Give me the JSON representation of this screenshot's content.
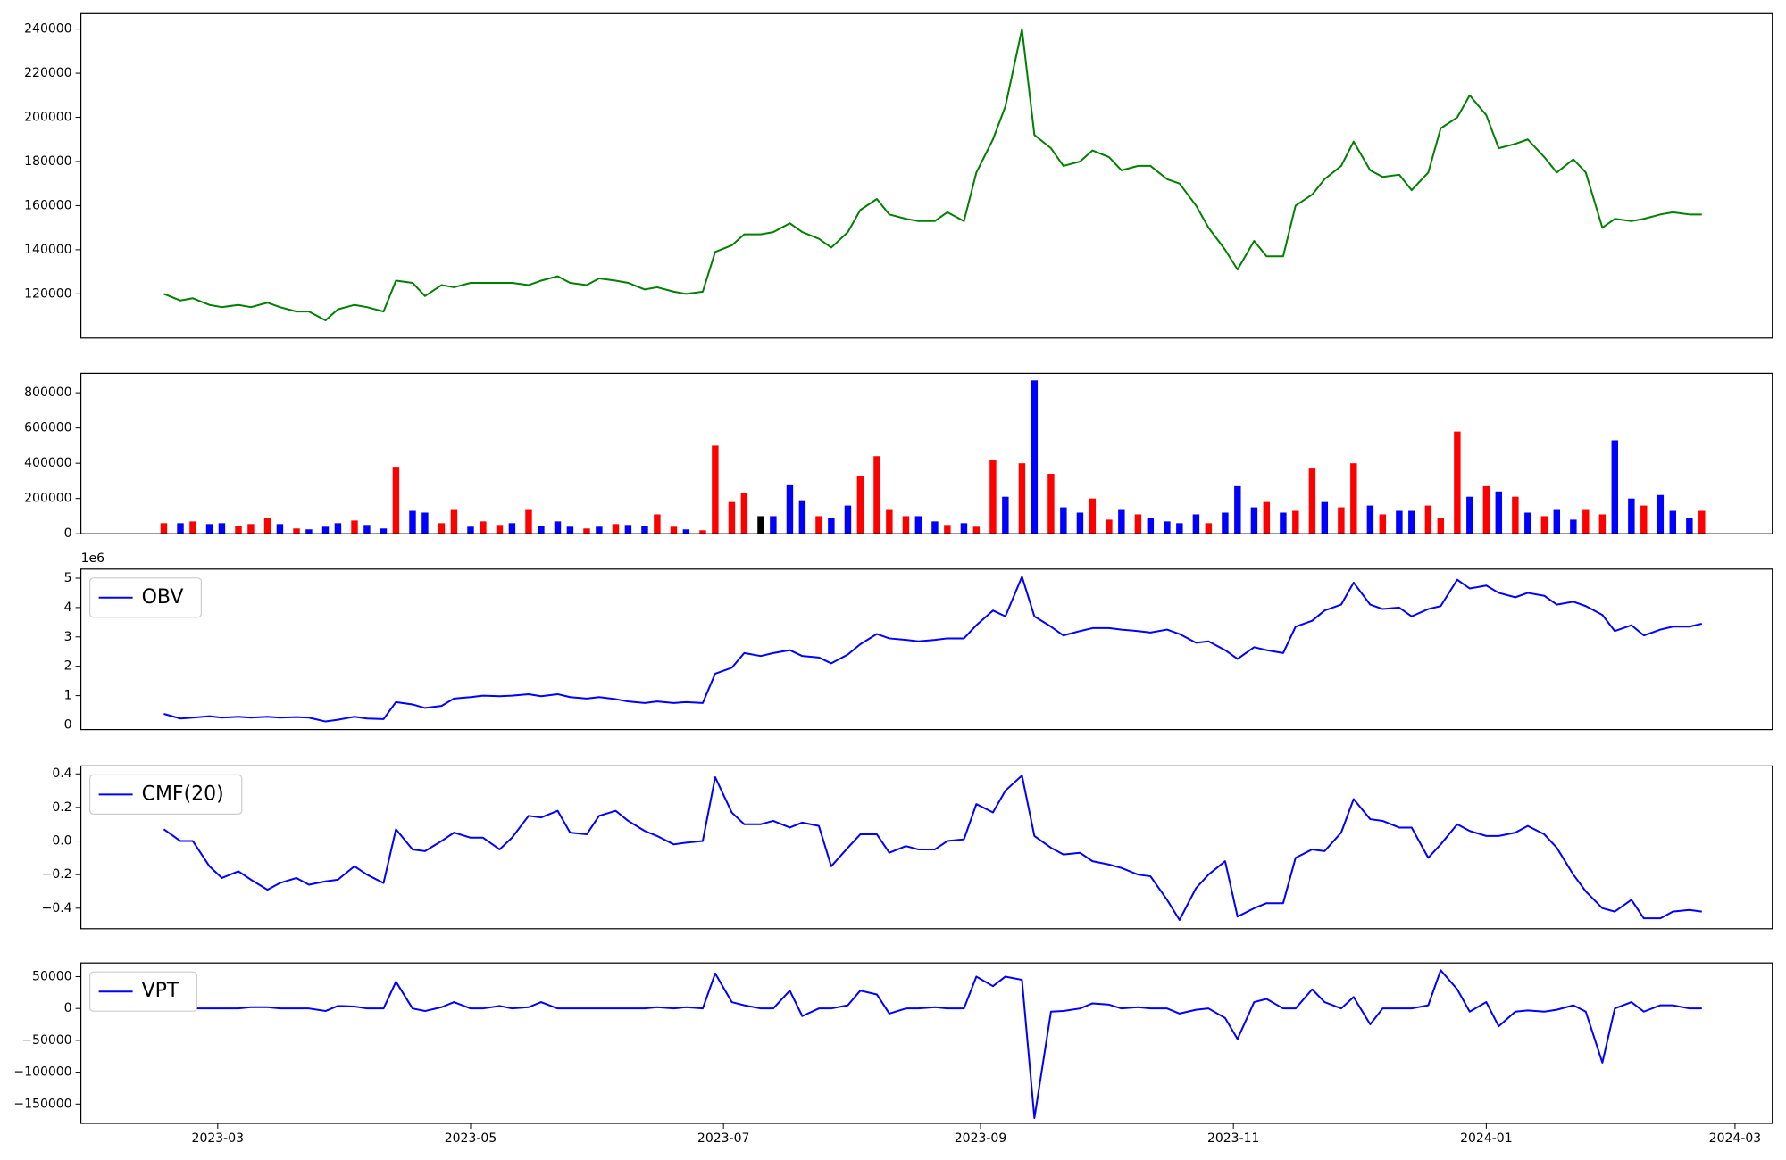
{
  "chart_data": {
    "type": "panels",
    "x": [
      "2023-02-16",
      "2023-02-20",
      "2023-02-23",
      "2023-02-27",
      "2023-03-02",
      "2023-03-06",
      "2023-03-09",
      "2023-03-13",
      "2023-03-16",
      "2023-03-20",
      "2023-03-23",
      "2023-03-27",
      "2023-03-30",
      "2023-04-03",
      "2023-04-06",
      "2023-04-10",
      "2023-04-13",
      "2023-04-17",
      "2023-04-20",
      "2023-04-24",
      "2023-04-27",
      "2023-05-01",
      "2023-05-04",
      "2023-05-08",
      "2023-05-11",
      "2023-05-15",
      "2023-05-18",
      "2023-05-22",
      "2023-05-25",
      "2023-05-29",
      "2023-06-01",
      "2023-06-05",
      "2023-06-08",
      "2023-06-12",
      "2023-06-15",
      "2023-06-19",
      "2023-06-22",
      "2023-06-26",
      "2023-06-29",
      "2023-07-03",
      "2023-07-06",
      "2023-07-10",
      "2023-07-13",
      "2023-07-17",
      "2023-07-20",
      "2023-07-24",
      "2023-07-27",
      "2023-07-31",
      "2023-08-03",
      "2023-08-07",
      "2023-08-10",
      "2023-08-14",
      "2023-08-17",
      "2023-08-21",
      "2023-08-24",
      "2023-08-28",
      "2023-08-31",
      "2023-09-04",
      "2023-09-07",
      "2023-09-11",
      "2023-09-14",
      "2023-09-18",
      "2023-09-21",
      "2023-09-25",
      "2023-09-28",
      "2023-10-02",
      "2023-10-05",
      "2023-10-09",
      "2023-10-12",
      "2023-10-16",
      "2023-10-19",
      "2023-10-23",
      "2023-10-26",
      "2023-10-30",
      "2023-11-02",
      "2023-11-06",
      "2023-11-09",
      "2023-11-13",
      "2023-11-16",
      "2023-11-20",
      "2023-11-23",
      "2023-11-27",
      "2023-11-30",
      "2023-12-04",
      "2023-12-07",
      "2023-12-11",
      "2023-12-14",
      "2023-12-18",
      "2023-12-21",
      "2023-12-25",
      "2023-12-28",
      "2024-01-01",
      "2024-01-04",
      "2024-01-08",
      "2024-01-11",
      "2024-01-15",
      "2024-01-18",
      "2024-01-22",
      "2024-01-25",
      "2024-01-29",
      "2024-02-01",
      "2024-02-05",
      "2024-02-08",
      "2024-02-12",
      "2024-02-15",
      "2024-02-19",
      "2024-02-22"
    ],
    "xlim": [
      "2023-01-27",
      "2024-03-10"
    ],
    "xticks": [
      {
        "value": "2023-03-01",
        "label": "2023-03"
      },
      {
        "value": "2023-05-01",
        "label": "2023-05"
      },
      {
        "value": "2023-07-01",
        "label": "2023-07"
      },
      {
        "value": "2023-09-01",
        "label": "2023-09"
      },
      {
        "value": "2023-11-01",
        "label": "2023-11"
      },
      {
        "value": "2024-01-01",
        "label": "2024-01"
      },
      {
        "value": "2024-03-01",
        "label": "2024-03"
      }
    ],
    "panels": [
      {
        "type": "line",
        "ylim": [
          100000,
          247000
        ],
        "yticks": [
          120000,
          140000,
          160000,
          180000,
          200000,
          220000,
          240000
        ],
        "series": [
          {
            "color": "#008000",
            "values": [
              120000,
              117000,
              118000,
              115000,
              114000,
              115000,
              114000,
              116000,
              114000,
              112000,
              112000,
              108000,
              113000,
              115000,
              114000,
              112000,
              126000,
              125000,
              119000,
              124000,
              123000,
              125000,
              125000,
              125000,
              125000,
              124000,
              126000,
              128000,
              125000,
              124000,
              127000,
              126000,
              125000,
              122000,
              123000,
              121000,
              120000,
              121000,
              139000,
              142000,
              147000,
              147000,
              148000,
              152000,
              148000,
              145000,
              141000,
              148000,
              158000,
              163000,
              156000,
              154000,
              153000,
              153000,
              157000,
              153000,
              175000,
              190000,
              205000,
              240000,
              192000,
              186000,
              178000,
              180000,
              185000,
              182000,
              176000,
              178000,
              178000,
              172000,
              170000,
              160000,
              150000,
              140000,
              131000,
              144000,
              137000,
              137000,
              160000,
              165000,
              172000,
              178000,
              189000,
              176000,
              173000,
              174000,
              167000,
              175000,
              195000,
              200000,
              210000,
              201000,
              186000,
              188000,
              190000,
              182000,
              175000,
              181000,
              175000,
              150000,
              154000,
              153000,
              154000,
              156000,
              157000,
              156000,
              156000
            ]
          }
        ]
      },
      {
        "type": "bar",
        "ylim": [
          0,
          910000
        ],
        "yticks": [
          0,
          200000,
          400000,
          600000,
          800000
        ],
        "series": [
          {
            "values": [
              60000,
              60000,
              70000,
              55000,
              60000,
              45000,
              55000,
              90000,
              55000,
              30000,
              25000,
              40000,
              60000,
              75000,
              50000,
              30000,
              380000,
              130000,
              120000,
              60000,
              140000,
              40000,
              70000,
              50000,
              60000,
              140000,
              45000,
              70000,
              40000,
              30000,
              40000,
              55000,
              50000,
              45000,
              110000,
              40000,
              25000,
              20000,
              500000,
              180000,
              230000,
              100000,
              100000,
              280000,
              190000,
              100000,
              90000,
              160000,
              330000,
              440000,
              140000,
              100000,
              100000,
              70000,
              50000,
              60000,
              40000,
              420000,
              210000,
              400000,
              870000,
              340000,
              150000,
              120000,
              200000,
              80000,
              140000,
              110000,
              90000,
              70000,
              60000,
              110000,
              60000,
              120000,
              270000,
              150000,
              180000,
              120000,
              130000,
              370000,
              180000,
              150000,
              400000,
              160000,
              110000,
              130000,
              130000,
              160000,
              90000,
              580000,
              210000,
              270000,
              240000,
              210000,
              120000,
              100000,
              140000,
              80000,
              140000,
              110000,
              530000,
              200000,
              160000,
              220000,
              130000,
              90000,
              130000
            ],
            "colors": [
              "red",
              "blue",
              "red",
              "blue",
              "blue",
              "red",
              "red",
              "red",
              "blue",
              "red",
              "blue",
              "blue",
              "blue",
              "red",
              "blue",
              "blue",
              "red",
              "blue",
              "blue",
              "red",
              "red",
              "blue",
              "red",
              "red",
              "blue",
              "red",
              "blue",
              "blue",
              "blue",
              "red",
              "blue",
              "red",
              "blue",
              "blue",
              "red",
              "red",
              "blue",
              "red",
              "red",
              "red",
              "red",
              "black",
              "blue",
              "blue",
              "blue",
              "red",
              "blue",
              "blue",
              "red",
              "red",
              "red",
              "red",
              "blue",
              "blue",
              "red",
              "blue",
              "red",
              "red",
              "blue",
              "red",
              "blue",
              "red",
              "blue",
              "blue",
              "red",
              "red",
              "blue",
              "red",
              "blue",
              "blue",
              "blue",
              "blue",
              "red",
              "blue",
              "blue",
              "blue",
              "red",
              "blue",
              "red",
              "red",
              "blue",
              "red",
              "red",
              "blue",
              "red",
              "blue",
              "blue",
              "red",
              "red",
              "red",
              "blue",
              "red",
              "blue",
              "red",
              "blue",
              "red",
              "blue",
              "blue",
              "red",
              "red",
              "blue",
              "blue",
              "red",
              "blue",
              "blue",
              "blue",
              "red"
            ]
          }
        ]
      },
      {
        "type": "line",
        "ylim": [
          -0.155,
          5.31
        ],
        "yticks": [
          0,
          1,
          2,
          3,
          4,
          5
        ],
        "offset_label": "1e6",
        "legend": "upper left",
        "series": [
          {
            "name": "OBV",
            "color": "#0000ff",
            "values": [
              0.38,
              0.22,
              0.25,
              0.3,
              0.25,
              0.28,
              0.25,
              0.28,
              0.25,
              0.27,
              0.25,
              0.12,
              0.18,
              0.28,
              0.22,
              0.2,
              0.78,
              0.7,
              0.58,
              0.65,
              0.9,
              0.95,
              1.0,
              0.98,
              1.0,
              1.05,
              0.98,
              1.05,
              0.95,
              0.9,
              0.95,
              0.88,
              0.8,
              0.75,
              0.8,
              0.75,
              0.78,
              0.75,
              1.75,
              1.95,
              2.45,
              2.35,
              2.45,
              2.55,
              2.35,
              2.3,
              2.1,
              2.4,
              2.75,
              3.1,
              2.95,
              2.9,
              2.85,
              2.9,
              2.95,
              2.95,
              3.4,
              3.9,
              3.7,
              5.05,
              3.7,
              3.35,
              3.05,
              3.2,
              3.3,
              3.3,
              3.25,
              3.2,
              3.15,
              3.25,
              3.1,
              2.8,
              2.85,
              2.55,
              2.25,
              2.65,
              2.55,
              2.45,
              3.35,
              3.55,
              3.9,
              4.1,
              4.85,
              4.1,
              3.95,
              4.0,
              3.7,
              3.95,
              4.05,
              4.95,
              4.65,
              4.75,
              4.5,
              4.35,
              4.5,
              4.4,
              4.1,
              4.2,
              4.05,
              3.75,
              3.2,
              3.4,
              3.05,
              3.25,
              3.35,
              3.35,
              3.45
            ]
          }
        ]
      },
      {
        "type": "line",
        "ylim": [
          -0.522,
          0.447
        ],
        "yticks": [
          {
            "value": -0.4,
            "label": "−0.4"
          },
          {
            "value": -0.2,
            "label": "−0.2"
          },
          {
            "value": 0,
            "label": "0.0"
          },
          0.2,
          0.4
        ],
        "legend": "upper left",
        "series": [
          {
            "name": "CMF(20)",
            "color": "#0000ff",
            "values": [
              0.07,
              0,
              0,
              -0.15,
              -0.22,
              -0.18,
              -0.23,
              -0.29,
              -0.25,
              -0.22,
              -0.26,
              -0.24,
              -0.23,
              -0.15,
              -0.2,
              -0.25,
              0.07,
              -0.05,
              -0.06,
              0,
              0.05,
              0.02,
              0.02,
              -0.05,
              0.02,
              0.15,
              0.14,
              0.18,
              0.05,
              0.04,
              0.15,
              0.18,
              0.12,
              0.06,
              0.03,
              -0.02,
              -0.01,
              0,
              0.38,
              0.17,
              0.1,
              0.1,
              0.12,
              0.08,
              0.11,
              0.09,
              -0.15,
              -0.04,
              0.04,
              0.04,
              -0.07,
              -0.03,
              -0.05,
              -0.05,
              0,
              0.01,
              0.22,
              0.17,
              0.3,
              0.39,
              0.03,
              -0.04,
              -0.08,
              -0.07,
              -0.12,
              -0.14,
              -0.16,
              -0.2,
              -0.21,
              -0.35,
              -0.47,
              -0.28,
              -0.2,
              -0.12,
              -0.45,
              -0.4,
              -0.37,
              -0.37,
              -0.1,
              -0.05,
              -0.06,
              0.05,
              0.25,
              0.13,
              0.12,
              0.08,
              0.08,
              -0.1,
              -0.02,
              0.1,
              0.06,
              0.03,
              0.03,
              0.05,
              0.09,
              0.04,
              -0.04,
              -0.2,
              -0.3,
              -0.4,
              -0.42,
              -0.35,
              -0.46,
              -0.46,
              -0.42,
              -0.41,
              -0.42
            ]
          }
        ]
      },
      {
        "type": "line",
        "ylim": [
          -180400,
          71400
        ],
        "yticks": [
          {
            "value": -150000,
            "label": "−150000"
          },
          {
            "value": -100000,
            "label": "−100000"
          },
          {
            "value": -50000,
            "label": "−50000"
          },
          0,
          50000
        ],
        "legend": "upper left",
        "series": [
          {
            "name": "VPT",
            "color": "#0000ff",
            "values": [
              0,
              -2000,
              0,
              0,
              0,
              0,
              2000,
              2000,
              0,
              0,
              0,
              -4000,
              4000,
              3000,
              0,
              0,
              42000,
              0,
              -4000,
              2000,
              10000,
              0,
              0,
              4000,
              0,
              2000,
              10000,
              0,
              0,
              0,
              0,
              0,
              0,
              0,
              2000,
              0,
              2000,
              0,
              55000,
              10000,
              5000,
              0,
              0,
              28000,
              -12000,
              0,
              0,
              5000,
              28000,
              22000,
              -8000,
              0,
              0,
              2000,
              0,
              0,
              50000,
              35000,
              50000,
              45000,
              -172000,
              -5000,
              -4000,
              0,
              8000,
              6000,
              0,
              2000,
              0,
              0,
              -8000,
              -2000,
              0,
              -15000,
              -48000,
              10000,
              15000,
              0,
              0,
              30000,
              10000,
              0,
              18000,
              -25000,
              0,
              0,
              0,
              5000,
              60000,
              30000,
              -5000,
              10000,
              -28000,
              -5000,
              -3000,
              -5000,
              -2000,
              5000,
              -5000,
              -85000,
              0,
              10000,
              -5000,
              5000,
              5000,
              0,
              0
            ]
          }
        ]
      }
    ]
  }
}
